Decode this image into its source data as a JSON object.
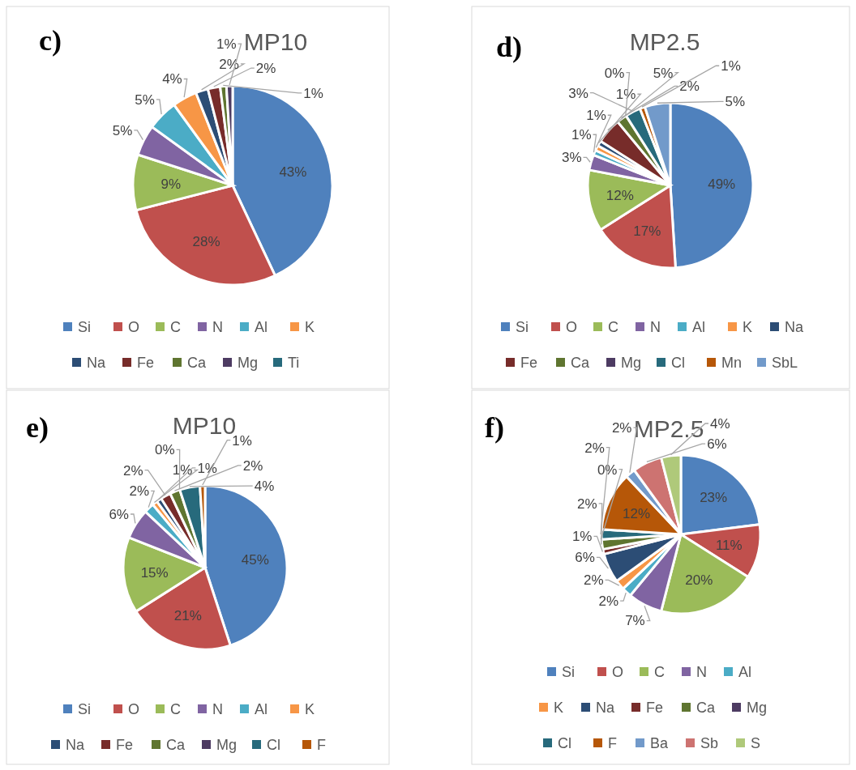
{
  "chart_data": [
    {
      "type": "pie",
      "title": "MP10",
      "annotations": [
        "c)"
      ],
      "categories": [
        "Si",
        "O",
        "C",
        "N",
        "Al",
        "K",
        "Na",
        "Fe",
        "Ca",
        "Mg",
        "Ti"
      ],
      "values": [
        43,
        28,
        9,
        5,
        5,
        4,
        2,
        2,
        1,
        1,
        null
      ],
      "data_labels": true,
      "value_labels": [
        "43%",
        "28%",
        "9%",
        "5%",
        "5%",
        "4%",
        "2%",
        "2%",
        "1%",
        "1%",
        null
      ],
      "colors": [
        "#4f81bd",
        "#c0504d",
        "#9bbb59",
        "#8064a2",
        "#4bacc6",
        "#f79646",
        "#2c4d75",
        "#772c2a",
        "#5f7530",
        "#4d3b62",
        "#276a7c"
      ],
      "legend": "bottom"
    },
    {
      "type": "pie",
      "title": "MP2.5",
      "annotations": [
        "d)"
      ],
      "categories": [
        "Si",
        "O",
        "C",
        "N",
        "Al",
        "K",
        "Na",
        "Fe",
        "Ca",
        "Mg",
        "Cl",
        "Mn",
        "SbL"
      ],
      "values": [
        49,
        17,
        12,
        3,
        1,
        1,
        1,
        5,
        2,
        0,
        3,
        1,
        5
      ],
      "data_labels": true,
      "value_labels": [
        "49%",
        "17%",
        "12%",
        "3%",
        "1%",
        "1%",
        "1%",
        "5%",
        "2%",
        "0%",
        "3%",
        "1%",
        "5%"
      ],
      "colors": [
        "#4f81bd",
        "#c0504d",
        "#9bbb59",
        "#8064a2",
        "#4bacc6",
        "#f79646",
        "#2c4d75",
        "#772c2a",
        "#5f7530",
        "#4d3b62",
        "#276a7c",
        "#b65708",
        "#729aca"
      ],
      "legend": "bottom"
    },
    {
      "type": "pie",
      "title": "MP10",
      "annotations": [
        "e)"
      ],
      "categories": [
        "Si",
        "O",
        "C",
        "N",
        "Al",
        "K",
        "Na",
        "Fe",
        "Ca",
        "Mg",
        "Cl",
        "F"
      ],
      "values": [
        45,
        21,
        15,
        6,
        2,
        1,
        1,
        2,
        2,
        0,
        4,
        1
      ],
      "data_labels": true,
      "value_labels": [
        "45%",
        "21%",
        "15%",
        "6%",
        "2%",
        "1%",
        "1%",
        "2%",
        "2%",
        "0%",
        "4%",
        "1%"
      ],
      "colors": [
        "#4f81bd",
        "#c0504d",
        "#9bbb59",
        "#8064a2",
        "#4bacc6",
        "#f79646",
        "#2c4d75",
        "#772c2a",
        "#5f7530",
        "#4d3b62",
        "#276a7c",
        "#b65708"
      ],
      "legend": "bottom"
    },
    {
      "type": "pie",
      "title": "MP2.5",
      "annotations": [
        "f)"
      ],
      "categories": [
        "Si",
        "O",
        "C",
        "N",
        "Al",
        "K",
        "Na",
        "Fe",
        "Ca",
        "Mg",
        "Cl",
        "F",
        "Ba",
        "Sb",
        "S"
      ],
      "values": [
        23,
        11,
        20,
        7,
        2,
        2,
        6,
        1,
        2,
        0,
        2,
        12,
        2,
        6,
        4
      ],
      "data_labels": true,
      "value_labels": [
        "23%",
        "11%",
        "20%",
        "7%",
        "2%",
        "2%",
        "6%",
        "1%",
        "2%",
        "0%",
        "2%",
        "12%",
        "2%",
        "6%",
        "4%"
      ],
      "colors": [
        "#4f81bd",
        "#c0504d",
        "#9bbb59",
        "#8064a2",
        "#4bacc6",
        "#f79646",
        "#2c4d75",
        "#772c2a",
        "#5f7530",
        "#4d3b62",
        "#276a7c",
        "#b65708",
        "#729aca",
        "#cd7371",
        "#afc97a"
      ],
      "legend": "bottom"
    }
  ]
}
